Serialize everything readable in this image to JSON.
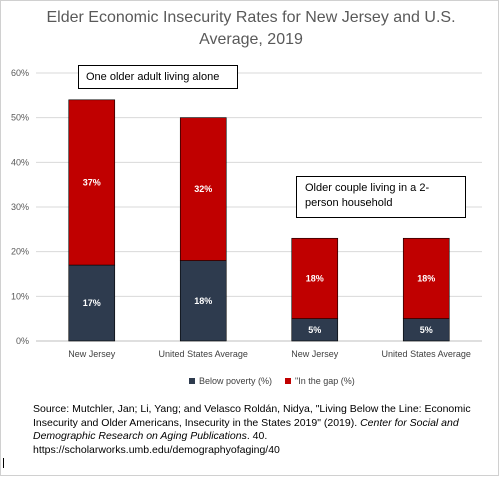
{
  "chart_data": {
    "type": "bar",
    "stacked": true,
    "title_line1": "Elder Economic Insecurity Rates for New Jersey and U.S.",
    "title_line2": "Average, 2019",
    "categories": [
      "New Jersey",
      "United States Average",
      "New Jersey",
      "United States Average"
    ],
    "series": [
      {
        "name": "Below poverty (%)",
        "values": [
          17,
          18,
          5,
          5
        ],
        "labels": [
          "17%",
          "18%",
          "5%",
          "5%"
        ],
        "color": "#2E3B4E"
      },
      {
        "name": "\"In the gap (%)",
        "values": [
          37,
          32,
          18,
          18
        ],
        "labels": [
          "37%",
          "32%",
          "18%",
          "18%"
        ],
        "color": "#C00000"
      }
    ],
    "ylim": [
      0,
      60
    ],
    "yticks": [
      "0%",
      "10%",
      "20%",
      "30%",
      "40%",
      "50%",
      "60%"
    ],
    "grid": true,
    "legend_position": "bottom",
    "annotations": [
      "One older adult living alone",
      "Older couple living in a 2-person household"
    ]
  },
  "source": {
    "line1": "Source: Mutchler, Jan; Li, Yang; and Velasco Roldán, Nidya, \"Living Below the Line: Economic",
    "line2_pre": "Insecurity and Older Americans, Insecurity in the States 2019\" (2019). ",
    "line2_italic": "Center for Social and",
    "line3_italic": "Demographic Research on Aging Publications",
    "line3_post": ". 40.",
    "line4": "https://scholarworks.umb.edu/demographyofaging/40"
  }
}
